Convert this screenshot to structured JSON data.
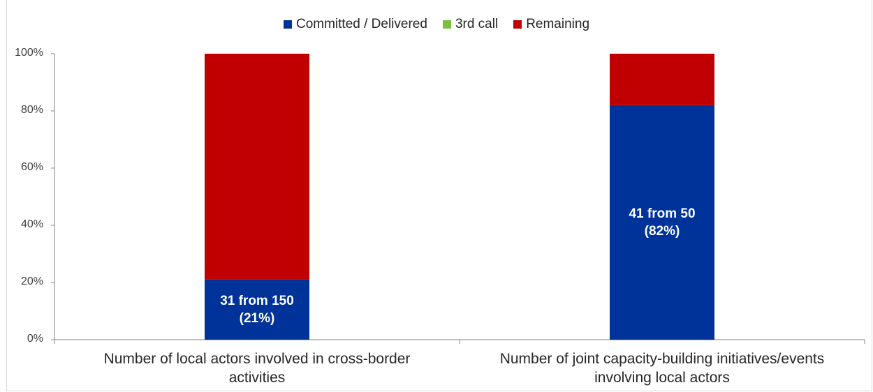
{
  "chart_data": {
    "type": "bar",
    "stacked": true,
    "normalized": true,
    "categories": [
      "Number of local actors involved in cross-border\nactivities",
      "Number of joint capacity-building initiatives/events\ninvolving local actors"
    ],
    "series": [
      {
        "name": "Committed / Delivered",
        "color": "#003399",
        "values": [
          21,
          82
        ]
      },
      {
        "name": "3rd call",
        "color": "#7fbf3f",
        "values": [
          0,
          0
        ]
      },
      {
        "name": "Remaining",
        "color": "#c00000",
        "values": [
          79,
          18
        ]
      }
    ],
    "data_labels": [
      [
        "31 from 150",
        "(21%)"
      ],
      [
        "41 from 50",
        "(82%)"
      ]
    ],
    "y_ticks": [
      "0%",
      "20%",
      "40%",
      "60%",
      "80%",
      "100%"
    ],
    "ylim": [
      0,
      100
    ],
    "legend_position": "top",
    "grid": false
  }
}
